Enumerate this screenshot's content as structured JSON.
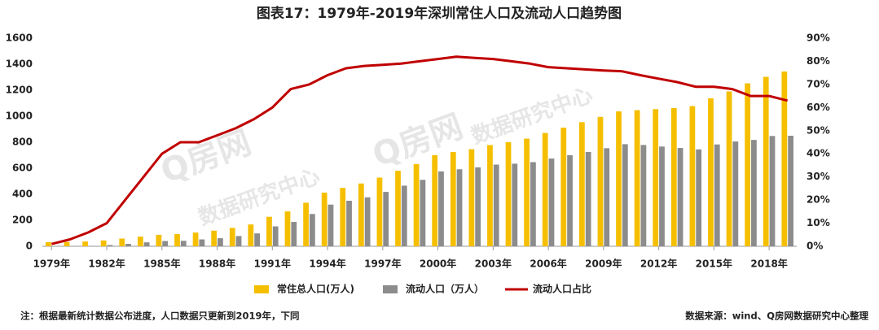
{
  "chart_data": {
    "type": "bar-line",
    "title": "图表17：1979年-2019年深圳常住人口及流动人口趋势图",
    "categories": [
      "1979年",
      null,
      null,
      "1982年",
      null,
      null,
      "1985年",
      null,
      null,
      "1988年",
      null,
      null,
      "1991年",
      null,
      null,
      "1994年",
      null,
      null,
      "1997年",
      null,
      null,
      "2000年",
      null,
      null,
      "2003年",
      null,
      null,
      "2006年",
      null,
      null,
      "2009年",
      null,
      null,
      "2012年",
      null,
      null,
      "2015年",
      null,
      null,
      "2018年",
      null
    ],
    "series": [
      {
        "name": "常住总人口(万人)",
        "color": "#f5bf00",
        "kind": "bar",
        "values": [
          31.4,
          33.3,
          36.7,
          44.9,
          59.5,
          74.1,
          88.2,
          93.6,
          105.4,
          120.1,
          141.6,
          167.8,
          226.8,
          268.0,
          335.0,
          412.7,
          449.2,
          482.9,
          527.8,
          580.3,
          632.6,
          701.2,
          724.6,
          746.6,
          778.3,
          800.8,
          827.8,
          871.1,
          912.4,
          954.3,
          995.0,
          1037.2,
          1046.7,
          1054.7,
          1062.9,
          1077.9,
          1137.9,
          1190.8,
          1252.8,
          1302.7,
          1343.9
        ]
      },
      {
        "name": "流动人口（万人）",
        "color": "#8c8c8c",
        "kind": "bar",
        "values": [
          0.2,
          1.2,
          3.3,
          9.4,
          18.5,
          30.4,
          40.4,
          42.1,
          52.8,
          62.0,
          78.8,
          99.0,
          153.0,
          187.2,
          248.5,
          320.4,
          350.0,
          376.3,
          418.0,
          466.0,
          511.1,
          576.0,
          592.0,
          607.0,
          628.0,
          635.0,
          646.9,
          674.7,
          700.0,
          725.0,
          754.0,
          785.0,
          779.0,
          767.0,
          756.0,
          745.0,
          783.0,
          806.0,
          818.0,
          848.0,
          850.0
        ]
      },
      {
        "name": "流动人口占比",
        "color": "#c00000",
        "kind": "line",
        "axis": "y2",
        "values": [
          1,
          3,
          6,
          10,
          20,
          30,
          40,
          45,
          45,
          48,
          51,
          55,
          60,
          68,
          70,
          74,
          77,
          78,
          78.5,
          79,
          80,
          81,
          82,
          81.5,
          81,
          80,
          79,
          77.5,
          77,
          76.5,
          76,
          75.7,
          74,
          72.5,
          71,
          69,
          69,
          68,
          65,
          65,
          63
        ]
      }
    ],
    "ylim": [
      0,
      1600
    ],
    "yticks": [
      0,
      200,
      400,
      600,
      800,
      1000,
      1200,
      1400,
      1600
    ],
    "y2lim": [
      0,
      90
    ],
    "y2ticks": [
      {
        "value": 0,
        "label": "0%"
      },
      {
        "value": 10,
        "label": "10%"
      },
      {
        "value": 20,
        "label": "20%"
      },
      {
        "value": 30,
        "label": "30%"
      },
      {
        "value": 40,
        "label": "40%"
      },
      {
        "value": 50,
        "label": "50%"
      },
      {
        "value": 60,
        "label": "60%"
      },
      {
        "value": 70,
        "label": "70%"
      },
      {
        "value": 80,
        "label": "80%"
      },
      {
        "value": 90,
        "label": "90%"
      }
    ],
    "grid": false,
    "legend": "bottom",
    "watermark": [
      "Q房网",
      "数据研究中心"
    ],
    "note": "注：根据最新统计数据公布进度，人口数据只更新到2019年，下同",
    "source": "数据来源：wind、Q房网数据研究中心整理"
  }
}
